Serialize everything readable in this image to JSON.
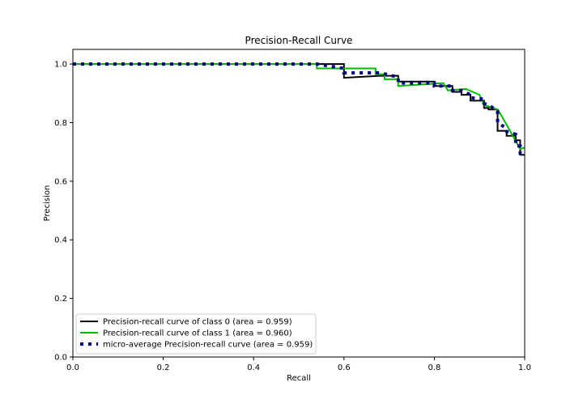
{
  "chart_data": {
    "type": "line",
    "title": "Precision-Recall Curve",
    "xlabel": "Recall",
    "ylabel": "Precision",
    "xlim": [
      0.0,
      1.0
    ],
    "ylim": [
      0.0,
      1.05
    ],
    "xticks": [
      0.0,
      0.2,
      0.4,
      0.6,
      0.8,
      1.0
    ],
    "xtick_labels": [
      "0.0",
      "0.2",
      "0.4",
      "0.6",
      "0.8",
      "1.0"
    ],
    "yticks": [
      0.0,
      0.2,
      0.4,
      0.6,
      0.8,
      1.0
    ],
    "ytick_labels": [
      "0.0",
      "0.2",
      "0.4",
      "0.6",
      "0.8",
      "1.0"
    ],
    "grid": false,
    "legend_position": "lower-left",
    "series": [
      {
        "name": "Precision-recall curve of class 0 (area = 0.959)",
        "color": "#000000",
        "style": "solid",
        "x": [
          0.0,
          0.54,
          0.6,
          0.6,
          0.68,
          0.7,
          0.72,
          0.72,
          0.8,
          0.8,
          0.84,
          0.84,
          0.86,
          0.86,
          0.88,
          0.88,
          0.91,
          0.91,
          0.92,
          0.92,
          0.94,
          0.94,
          0.96,
          0.96,
          0.98,
          0.98,
          0.99,
          0.99,
          1.0
        ],
        "y": [
          1.0,
          1.0,
          1.0,
          0.953,
          0.96,
          0.96,
          0.96,
          0.94,
          0.94,
          0.925,
          0.925,
          0.905,
          0.905,
          0.895,
          0.895,
          0.875,
          0.875,
          0.85,
          0.85,
          0.845,
          0.845,
          0.772,
          0.772,
          0.755,
          0.755,
          0.74,
          0.74,
          0.69,
          0.69
        ]
      },
      {
        "name": "Precision-recall curve of class 1 (area = 0.960)",
        "color": "#00bb00",
        "style": "solid",
        "x": [
          0.0,
          0.54,
          0.54,
          0.67,
          0.67,
          0.69,
          0.69,
          0.72,
          0.72,
          0.82,
          0.82,
          0.83,
          0.83,
          0.87,
          0.87,
          0.9,
          0.9,
          0.91,
          0.91,
          0.94,
          0.94,
          0.95,
          0.95,
          0.97,
          0.97,
          0.99,
          0.99,
          1.0
        ],
        "y": [
          1.0,
          1.0,
          0.985,
          0.985,
          0.965,
          0.965,
          0.948,
          0.948,
          0.925,
          0.935,
          0.935,
          0.91,
          0.91,
          0.915,
          0.915,
          0.895,
          0.895,
          0.86,
          0.86,
          0.845,
          0.845,
          0.82,
          0.82,
          0.765,
          0.765,
          0.71,
          0.71,
          0.715
        ]
      },
      {
        "name": "micro-average Precision-recall curve (area = 0.959)",
        "color": "#000080",
        "style": "dotted",
        "x": [
          0.0,
          0.54,
          0.6,
          0.6,
          0.68,
          0.72,
          0.72,
          0.8,
          0.8,
          0.84,
          0.84,
          0.86,
          0.88,
          0.88,
          0.91,
          0.91,
          0.92,
          0.94,
          0.94,
          0.96,
          0.96,
          0.98,
          0.98,
          0.99,
          0.99,
          1.0
        ],
        "y": [
          1.0,
          1.0,
          0.985,
          0.97,
          0.97,
          0.955,
          0.935,
          0.935,
          0.925,
          0.925,
          0.91,
          0.91,
          0.895,
          0.885,
          0.88,
          0.865,
          0.86,
          0.84,
          0.8,
          0.78,
          0.77,
          0.76,
          0.72,
          0.72,
          0.695,
          0.69
        ]
      }
    ]
  }
}
